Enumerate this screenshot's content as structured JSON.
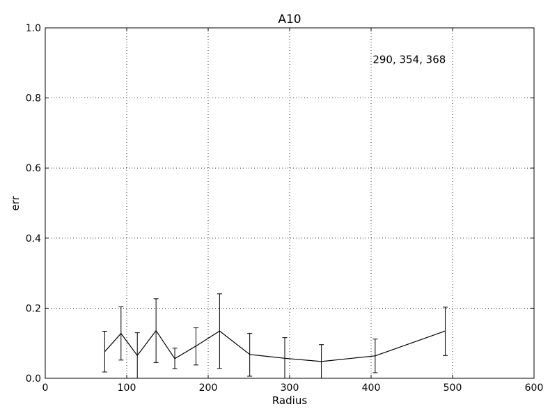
{
  "chart_data": {
    "type": "line",
    "title": "A10",
    "xlabel": "Radius",
    "ylabel": "err",
    "xlim": [
      0,
      600
    ],
    "ylim": [
      0,
      1.0
    ],
    "xticks": [
      0,
      100,
      200,
      300,
      400,
      500,
      600
    ],
    "xtick_labels": [
      "0",
      "100",
      "200",
      "300",
      "400",
      "500",
      "600"
    ],
    "yticks": [
      0,
      0.2,
      0.4,
      0.6,
      0.8,
      1.0
    ],
    "ytick_labels": [
      "0.0",
      "0.2",
      "0.4",
      "0.6",
      "0.8",
      "1.0"
    ],
    "grid": true,
    "annotation": {
      "text": "290, 354, 368",
      "x": 402,
      "y": 0.9
    },
    "series": [
      {
        "color": "#000000",
        "x": [
          73,
          93,
          113,
          136,
          159,
          185,
          214,
          251,
          294,
          339,
          405,
          491
        ],
        "y": [
          0.076,
          0.128,
          0.065,
          0.136,
          0.056,
          0.092,
          0.135,
          0.068,
          0.057,
          0.048,
          0.064,
          0.135
        ],
        "ylow": [
          0.018,
          0.052,
          0.0,
          0.045,
          0.027,
          0.038,
          0.028,
          0.006,
          0.0,
          0.0,
          0.016,
          0.065
        ],
        "yhigh": [
          0.134,
          0.204,
          0.13,
          0.227,
          0.086,
          0.144,
          0.241,
          0.128,
          0.116,
          0.096,
          0.112,
          0.203
        ]
      }
    ]
  }
}
